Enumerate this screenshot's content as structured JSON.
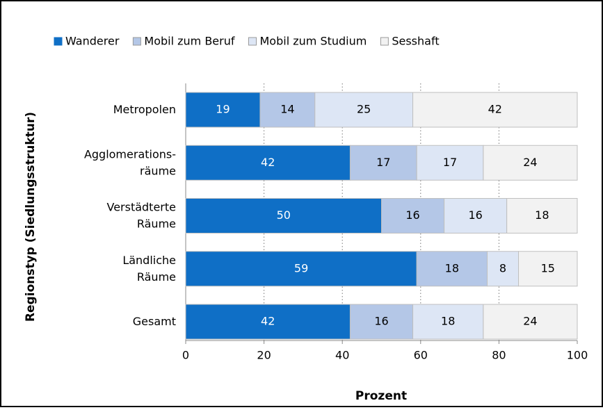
{
  "chart_data": {
    "type": "stacked-bar-horizontal",
    "categories": [
      "Metropolen",
      "Agglomerations-\nräume",
      "Verstädterte\nRäume",
      "Ländliche\nRäume",
      "Gesamt"
    ],
    "series": [
      {
        "name": "Wanderer",
        "color": "#0f6fc6",
        "values": [
          19,
          42,
          50,
          59,
          42
        ]
      },
      {
        "name": "Mobil zum Beruf",
        "color": "#b4c7e7",
        "values": [
          14,
          17,
          16,
          18,
          16
        ]
      },
      {
        "name": "Mobil zum Studium",
        "color": "#dde6f5",
        "values": [
          25,
          17,
          16,
          8,
          18
        ]
      },
      {
        "name": "Sesshaft",
        "color": "#f2f2f2",
        "values": [
          42,
          24,
          18,
          15,
          24
        ]
      }
    ],
    "xlim": [
      0,
      100
    ],
    "xticks": [
      0,
      20,
      40,
      60,
      80,
      100
    ],
    "x_label": "Prozent",
    "y_label": "Regionstyp (Siedlungsstruktur)",
    "grid": true,
    "legend": "top"
  }
}
